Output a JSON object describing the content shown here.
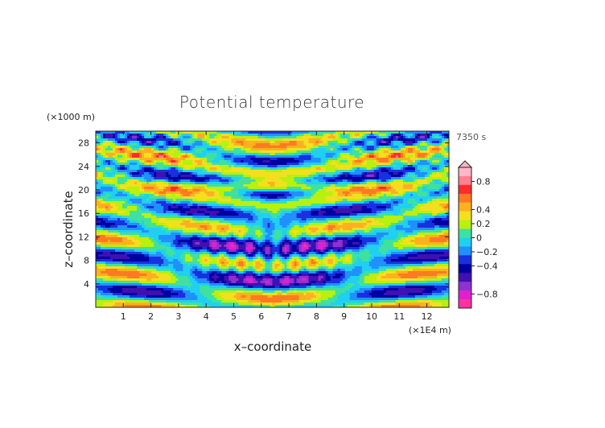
{
  "chart_data": {
    "type": "heatmap",
    "title": "Potential temperature",
    "xlabel": "x–coordinate",
    "ylabel": "z–coordinate",
    "x_unit": "(×1E4 m)",
    "y_unit": "(×1000 m)",
    "time_label": "7350 s",
    "x_range": [
      0,
      12.8
    ],
    "y_range": [
      0,
      30
    ],
    "x_ticks": [
      1,
      2,
      3,
      4,
      5,
      6,
      7,
      8,
      9,
      10,
      11,
      12
    ],
    "x_tick_labels": [
      "1",
      "2",
      "3",
      "4",
      "5",
      "6",
      "7",
      "8",
      "9",
      "10",
      "11",
      "12"
    ],
    "y_ticks": [
      4,
      8,
      12,
      16,
      20,
      24,
      28
    ],
    "y_tick_labels": [
      "4",
      "8",
      "12",
      "16",
      "20",
      "24",
      "28"
    ],
    "colorbar": {
      "range": [
        -1.0,
        1.0
      ],
      "ticks": [
        0.8,
        0.4,
        0.2,
        0,
        -0.2,
        -0.4,
        -0.8
      ],
      "tick_labels": [
        "0.8",
        "0.4",
        "0.2",
        "0",
        "−0.2",
        "−0.4",
        "−0.8"
      ],
      "colors": [
        "#ffb6c8",
        "#ff8090",
        "#ff2c2c",
        "#ff7a20",
        "#ffb020",
        "#f2e020",
        "#b8f010",
        "#40e0a0",
        "#20d0f0",
        "#2090ff",
        "#1830e0",
        "#0000a0",
        "#4010b0",
        "#9030d0",
        "#e020d0",
        "#ff30a0"
      ],
      "extend_top": true
    },
    "grid": false,
    "legend": "right"
  }
}
